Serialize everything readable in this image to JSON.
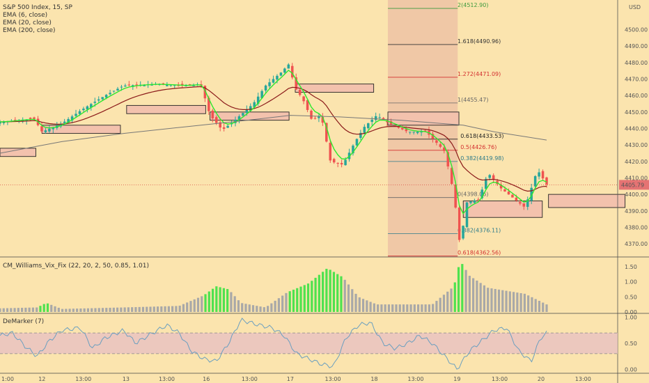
{
  "chart_data": [
    {
      "type": "candlestick",
      "title": "S&P 500 Index, 15, SP",
      "currency": "USD",
      "last_price": "4405.79",
      "ylim": [
        4362,
        4518
      ],
      "yticks": [
        4370,
        4380,
        4390,
        4400,
        4410,
        4420,
        4430,
        4440,
        4450,
        4460,
        4470,
        4480,
        4490,
        4500
      ],
      "xticks": [
        {
          "label": "1:00",
          "pos": 0.0
        },
        {
          "label": "12",
          "pos": 0.068
        },
        {
          "label": "13:00",
          "pos": 0.135
        },
        {
          "label": "13",
          "pos": 0.204
        },
        {
          "label": "13:00",
          "pos": 0.27
        },
        {
          "label": "16",
          "pos": 0.334
        },
        {
          "label": "13:00",
          "pos": 0.404
        },
        {
          "label": "17",
          "pos": 0.47
        },
        {
          "label": "13:00",
          "pos": 0.539
        },
        {
          "label": "18",
          "pos": 0.606
        },
        {
          "label": "13:00",
          "pos": 0.673
        },
        {
          "label": "19",
          "pos": 0.74
        },
        {
          "label": "13:00",
          "pos": 0.809
        },
        {
          "label": "20",
          "pos": 0.876
        },
        {
          "label": "13:00",
          "pos": 0.944
        }
      ],
      "legend": [
        "EMA (6, close)",
        "EMA (20, close)",
        "EMA (200, close)"
      ],
      "anchors": [
        {
          "t": 0,
          "p": 4444
        },
        {
          "t": 0.055,
          "p": 4446
        },
        {
          "t": 0.068,
          "p": 4438
        },
        {
          "t": 0.1,
          "p": 4443
        },
        {
          "t": 0.135,
          "p": 4452
        },
        {
          "t": 0.17,
          "p": 4460
        },
        {
          "t": 0.2,
          "p": 4466
        },
        {
          "t": 0.25,
          "p": 4467
        },
        {
          "t": 0.3,
          "p": 4466
        },
        {
          "t": 0.325,
          "p": 4467
        },
        {
          "t": 0.34,
          "p": 4448
        },
        {
          "t": 0.36,
          "p": 4439
        },
        {
          "t": 0.38,
          "p": 4445
        },
        {
          "t": 0.41,
          "p": 4455
        },
        {
          "t": 0.43,
          "p": 4466
        },
        {
          "t": 0.455,
          "p": 4474
        },
        {
          "t": 0.47,
          "p": 4480
        },
        {
          "t": 0.475,
          "p": 4466
        },
        {
          "t": 0.49,
          "p": 4458
        },
        {
          "t": 0.505,
          "p": 4445
        },
        {
          "t": 0.52,
          "p": 4448
        },
        {
          "t": 0.535,
          "p": 4420
        },
        {
          "t": 0.555,
          "p": 4418
        },
        {
          "t": 0.575,
          "p": 4432
        },
        {
          "t": 0.59,
          "p": 4441
        },
        {
          "t": 0.61,
          "p": 4448
        },
        {
          "t": 0.63,
          "p": 4443
        },
        {
          "t": 0.66,
          "p": 4438
        },
        {
          "t": 0.69,
          "p": 4438
        },
        {
          "t": 0.72,
          "p": 4426
        },
        {
          "t": 0.735,
          "p": 4400
        },
        {
          "t": 0.745,
          "p": 4368
        },
        {
          "t": 0.755,
          "p": 4395
        },
        {
          "t": 0.775,
          "p": 4397
        },
        {
          "t": 0.79,
          "p": 4413
        },
        {
          "t": 0.81,
          "p": 4404
        },
        {
          "t": 0.83,
          "p": 4398
        },
        {
          "t": 0.85,
          "p": 4392
        },
        {
          "t": 0.87,
          "p": 4415
        },
        {
          "t": 0.885,
          "p": 4406
        }
      ],
      "ema200": [
        {
          "t": 0,
          "p": 4425
        },
        {
          "t": 0.1,
          "p": 4432
        },
        {
          "t": 0.2,
          "p": 4437
        },
        {
          "t": 0.3,
          "p": 4441
        },
        {
          "t": 0.4,
          "p": 4445
        },
        {
          "t": 0.47,
          "p": 4448
        },
        {
          "t": 0.55,
          "p": 4447
        },
        {
          "t": 0.65,
          "p": 4445
        },
        {
          "t": 0.75,
          "p": 4442
        },
        {
          "t": 0.8,
          "p": 4438
        },
        {
          "t": 0.885,
          "p": 4433
        }
      ],
      "zones": [
        {
          "t0": 0.0,
          "t1": 0.058,
          "p0": 4428,
          "p1": 4423
        },
        {
          "t0": 0.068,
          "t1": 0.195,
          "p0": 4442,
          "p1": 4437
        },
        {
          "t0": 0.205,
          "t1": 0.333,
          "p0": 4454,
          "p1": 4449
        },
        {
          "t0": 0.34,
          "t1": 0.468,
          "p0": 4450,
          "p1": 4445
        },
        {
          "t0": 0.478,
          "t1": 0.605,
          "p0": 4467,
          "p1": 4462
        },
        {
          "t0": 0.628,
          "t1": 0.743,
          "p0": 4450,
          "p1": 4442
        },
        {
          "t0": 0.75,
          "t1": 0.878,
          "p0": 4396,
          "p1": 4386
        },
        {
          "t0": 0.888,
          "t1": 1.012,
          "p0": 4400,
          "p1": 4392
        }
      ],
      "fib_zone": {
        "t0": 0.628,
        "t1": 0.741
      },
      "fib_levels": [
        {
          "label": "2(4512.90)",
          "p": 4512.9,
          "color": "#3d9a3d"
        },
        {
          "label": "1.618(4490.96)",
          "p": 4490.96,
          "color": "#333333"
        },
        {
          "label": "1.272(4471.09)",
          "p": 4471.09,
          "color": "#d32f2f"
        },
        {
          "label": "1(4455.47)",
          "p": 4455.47,
          "color": "#666666"
        },
        {
          "label": "0.618(4433.53)",
          "p": 4433.53,
          "color": "#222222"
        },
        {
          "label": "0.5(4426.76)",
          "p": 4426.76,
          "color": "#d32f2f"
        },
        {
          "label": "0.382(4419.98)",
          "p": 4419.98,
          "color": "#2a7a8a"
        },
        {
          "label": "0(4398.06)",
          "p": 4398.06,
          "color": "#666666"
        },
        {
          "label": "0.382(4376.11)",
          "p": 4376.11,
          "color": "#2a7a8a"
        },
        {
          "label": "0.618(4362.56)",
          "p": 4362.56,
          "color": "#d32f2f"
        }
      ]
    },
    {
      "type": "bar",
      "title": "CM_Williams_Vix_Fix (22, 20, 2, 50, 0.85, 1.01)",
      "ylim": [
        0,
        1.75
      ],
      "yticks": [
        0.0,
        0.5,
        1.0,
        1.5
      ],
      "ytick_labels": [
        "0.00",
        "0.50",
        "1.00",
        "1.50"
      ],
      "anchors": [
        {
          "t": 0,
          "v": 0.12
        },
        {
          "t": 0.06,
          "v": 0.15
        },
        {
          "t": 0.075,
          "v": 0.3
        },
        {
          "t": 0.1,
          "v": 0.1
        },
        {
          "t": 0.2,
          "v": 0.15
        },
        {
          "t": 0.29,
          "v": 0.2
        },
        {
          "t": 0.33,
          "v": 0.55
        },
        {
          "t": 0.35,
          "v": 0.85
        },
        {
          "t": 0.37,
          "v": 0.75
        },
        {
          "t": 0.39,
          "v": 0.3
        },
        {
          "t": 0.43,
          "v": 0.15
        },
        {
          "t": 0.465,
          "v": 0.65
        },
        {
          "t": 0.5,
          "v": 0.95
        },
        {
          "t": 0.53,
          "v": 1.45
        },
        {
          "t": 0.555,
          "v": 1.15
        },
        {
          "t": 0.58,
          "v": 0.5
        },
        {
          "t": 0.61,
          "v": 0.25
        },
        {
          "t": 0.7,
          "v": 0.25
        },
        {
          "t": 0.735,
          "v": 0.85
        },
        {
          "t": 0.745,
          "v": 1.7
        },
        {
          "t": 0.76,
          "v": 1.2
        },
        {
          "t": 0.79,
          "v": 0.8
        },
        {
          "t": 0.85,
          "v": 0.6
        },
        {
          "t": 0.885,
          "v": 0.25
        }
      ],
      "green_ranges": [
        [
          0.06,
          0.08
        ],
        [
          0.33,
          0.37
        ],
        [
          0.465,
          0.555
        ],
        [
          0.735,
          0.752
        ]
      ]
    },
    {
      "type": "line",
      "title": "DeMarker (7)",
      "ylim": [
        -0.05,
        1.05
      ],
      "yticks": [
        0.0,
        0.5,
        1.0
      ],
      "ytick_labels": [
        "0.00",
        "0.50",
        "1.00"
      ],
      "band": [
        0.3,
        0.7
      ],
      "anchors": [
        {
          "t": 0,
          "v": 0.65
        },
        {
          "t": 0.02,
          "v": 0.7
        },
        {
          "t": 0.04,
          "v": 0.45
        },
        {
          "t": 0.06,
          "v": 0.25
        },
        {
          "t": 0.08,
          "v": 0.55
        },
        {
          "t": 0.1,
          "v": 0.75
        },
        {
          "t": 0.13,
          "v": 0.8
        },
        {
          "t": 0.15,
          "v": 0.4
        },
        {
          "t": 0.17,
          "v": 0.6
        },
        {
          "t": 0.2,
          "v": 0.75
        },
        {
          "t": 0.22,
          "v": 0.5
        },
        {
          "t": 0.24,
          "v": 0.65
        },
        {
          "t": 0.27,
          "v": 0.85
        },
        {
          "t": 0.29,
          "v": 0.7
        },
        {
          "t": 0.31,
          "v": 0.35
        },
        {
          "t": 0.33,
          "v": 0.2
        },
        {
          "t": 0.35,
          "v": 0.15
        },
        {
          "t": 0.37,
          "v": 0.5
        },
        {
          "t": 0.39,
          "v": 0.95
        },
        {
          "t": 0.42,
          "v": 0.85
        },
        {
          "t": 0.44,
          "v": 0.8
        },
        {
          "t": 0.46,
          "v": 0.65
        },
        {
          "t": 0.48,
          "v": 0.3
        },
        {
          "t": 0.5,
          "v": 0.2
        },
        {
          "t": 0.52,
          "v": 0.1
        },
        {
          "t": 0.54,
          "v": 0.05
        },
        {
          "t": 0.56,
          "v": 0.6
        },
        {
          "t": 0.58,
          "v": 0.85
        },
        {
          "t": 0.6,
          "v": 0.9
        },
        {
          "t": 0.62,
          "v": 0.5
        },
        {
          "t": 0.64,
          "v": 0.4
        },
        {
          "t": 0.66,
          "v": 0.5
        },
        {
          "t": 0.68,
          "v": 0.65
        },
        {
          "t": 0.7,
          "v": 0.5
        },
        {
          "t": 0.72,
          "v": 0.25
        },
        {
          "t": 0.74,
          "v": 0.0
        },
        {
          "t": 0.76,
          "v": 0.35
        },
        {
          "t": 0.78,
          "v": 0.55
        },
        {
          "t": 0.8,
          "v": 0.75
        },
        {
          "t": 0.82,
          "v": 0.8
        },
        {
          "t": 0.84,
          "v": 0.35
        },
        {
          "t": 0.86,
          "v": 0.15
        },
        {
          "t": 0.875,
          "v": 0.6
        },
        {
          "t": 0.885,
          "v": 0.7
        }
      ]
    }
  ]
}
